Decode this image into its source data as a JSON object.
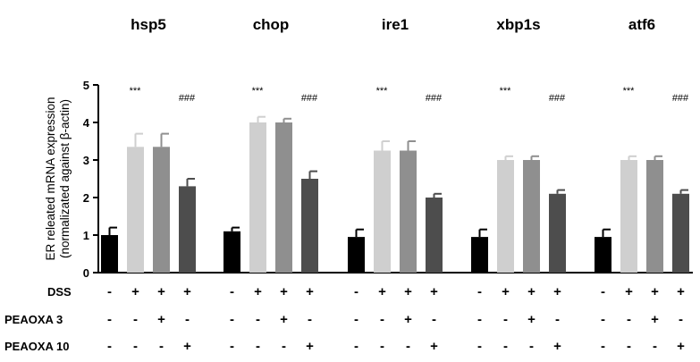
{
  "chart_data": {
    "type": "bar",
    "ylabel_line1": "ER releated mRNA expression",
    "ylabel_line2": "(normalizated against β-actin)",
    "ylim": [
      0,
      5
    ],
    "yticks": [
      "0",
      "1",
      "2",
      "3",
      "4",
      "5"
    ],
    "series_colors": [
      "#000000",
      "#cfcfcf",
      "#8f8f8f",
      "#4d4d4d"
    ],
    "groups": [
      {
        "name": "hsp5",
        "values": [
          1.0,
          3.35,
          3.35,
          2.3
        ],
        "errors": [
          0.2,
          0.35,
          0.35,
          0.2
        ],
        "sig_stars": "***",
        "sig_hash": "###"
      },
      {
        "name": "chop",
        "values": [
          1.1,
          4.0,
          4.0,
          2.5
        ],
        "errors": [
          0.1,
          0.15,
          0.1,
          0.2
        ],
        "sig_stars": "***",
        "sig_hash": "###"
      },
      {
        "name": "ire1",
        "values": [
          0.95,
          3.25,
          3.25,
          2.0
        ],
        "errors": [
          0.2,
          0.25,
          0.25,
          0.1
        ],
        "sig_stars": "***",
        "sig_hash": "###"
      },
      {
        "name": "xbp1s",
        "values": [
          0.95,
          3.0,
          3.0,
          2.1
        ],
        "errors": [
          0.2,
          0.1,
          0.1,
          0.1
        ],
        "sig_stars": "***",
        "sig_hash": "###"
      },
      {
        "name": "atf6",
        "values": [
          0.95,
          3.0,
          3.0,
          2.1
        ],
        "errors": [
          0.2,
          0.1,
          0.1,
          0.1
        ],
        "sig_stars": "***",
        "sig_hash": "###"
      }
    ],
    "treatment_rows": [
      {
        "label": "DSS",
        "signs": [
          "-",
          "+",
          "+",
          "+"
        ]
      },
      {
        "label": "PEAOXA 3",
        "signs": [
          "-",
          "-",
          "+",
          "-"
        ]
      },
      {
        "label": "PEAOXA 10",
        "signs": [
          "-",
          "-",
          "-",
          "+"
        ]
      }
    ]
  }
}
